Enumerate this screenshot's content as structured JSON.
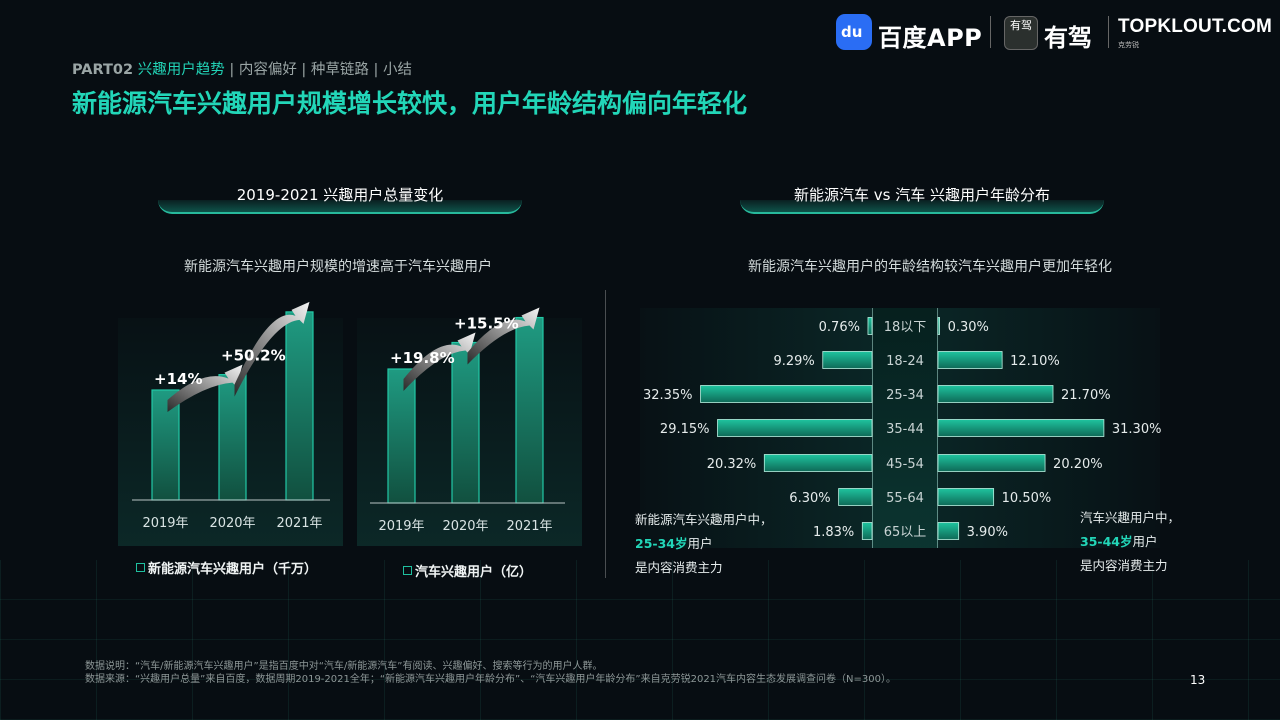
{
  "header": {
    "baidu_icon": "baidu-paw-icon",
    "baidu_text": "百度APP",
    "youjia_icon_text": "有驾",
    "youjia_text": "有驾",
    "topklout_text": "TOPKLOUT.COM",
    "topklout_sub": "克劳锐"
  },
  "breadcrumb": {
    "part": "PART02",
    "active": "兴趣用户趋势",
    "rest": " | 内容偏好 | 种草链路 | 小结"
  },
  "page_title": "新能源汽车兴趣用户规模增长较快，用户年龄结构偏向年轻化",
  "left_section": {
    "title": "2019-2021 兴趣用户总量变化",
    "subtitle": "新能源汽车兴趣用户规模的增速高于汽车兴趣用户",
    "legend_nev": "新能源汽车兴趣用户（千万）",
    "legend_auto": "汽车兴趣用户（亿）"
  },
  "right_section": {
    "title": "新能源汽车 vs 汽车 兴趣用户年龄分布",
    "subtitle": "新能源汽车兴趣用户的年龄结构较汽车兴趣用户更加年轻化",
    "note_left": {
      "line1": "新能源汽车兴趣用户中，",
      "hl": "25-34岁",
      "line2_rest": "用户",
      "line3": "是内容消费主力"
    },
    "note_right": {
      "line1": "汽车兴趣用户中，",
      "hl": "35-44岁",
      "line2_rest": "用户",
      "line3": "是内容消费主力"
    }
  },
  "chart_data": [
    {
      "type": "bar",
      "categories": [
        "2019年",
        "2020年",
        "2021年"
      ],
      "values": [
        1.0,
        1.14,
        1.71
      ],
      "annotations": [
        "+14%",
        "+50.2%"
      ],
      "series_name": "新能源汽车兴趣用户（千万）",
      "color": "#1e8a74"
    },
    {
      "type": "bar",
      "categories": [
        "2019年",
        "2020年",
        "2021年"
      ],
      "values": [
        1.0,
        1.198,
        1.384
      ],
      "annotations": [
        "+19.8%",
        "+15.5%"
      ],
      "series_name": "汽车兴趣用户（亿）",
      "color": "#1e8a74"
    },
    {
      "type": "bar",
      "orientation": "butterfly",
      "categories": [
        "18以下",
        "18-24",
        "25-34",
        "35-44",
        "45-54",
        "55-64",
        "65以上"
      ],
      "series": [
        {
          "name": "新能源汽车",
          "values": [
            0.76,
            9.29,
            32.35,
            29.15,
            20.32,
            6.3,
            1.83
          ],
          "labels": [
            "0.76%",
            "9.29%",
            "32.35%",
            "29.15%",
            "20.32%",
            "6.30%",
            "1.83%"
          ]
        },
        {
          "name": "汽车",
          "values": [
            0.3,
            12.1,
            21.7,
            31.3,
            20.2,
            10.5,
            3.9
          ],
          "labels": [
            "0.30%",
            "12.10%",
            "21.70%",
            "31.30%",
            "20.20%",
            "10.50%",
            "3.90%"
          ]
        }
      ],
      "color": "#22c7a5"
    }
  ],
  "footnote": {
    "line1": "数据说明：“汽车/新能源汽车兴趣用户”是指百度中对“汽车/新能源汽车”有阅读、兴趣偏好、搜索等行为的用户人群。",
    "line2": "数据来源：“兴趣用户总量”来自百度，数据周期2019-2021全年；“新能源汽车兴趣用户年龄分布”、“汽车兴趣用户年龄分布”来自克劳锐2021汽车内容生态发展调查问卷（N=300）。"
  },
  "page_number": "13"
}
